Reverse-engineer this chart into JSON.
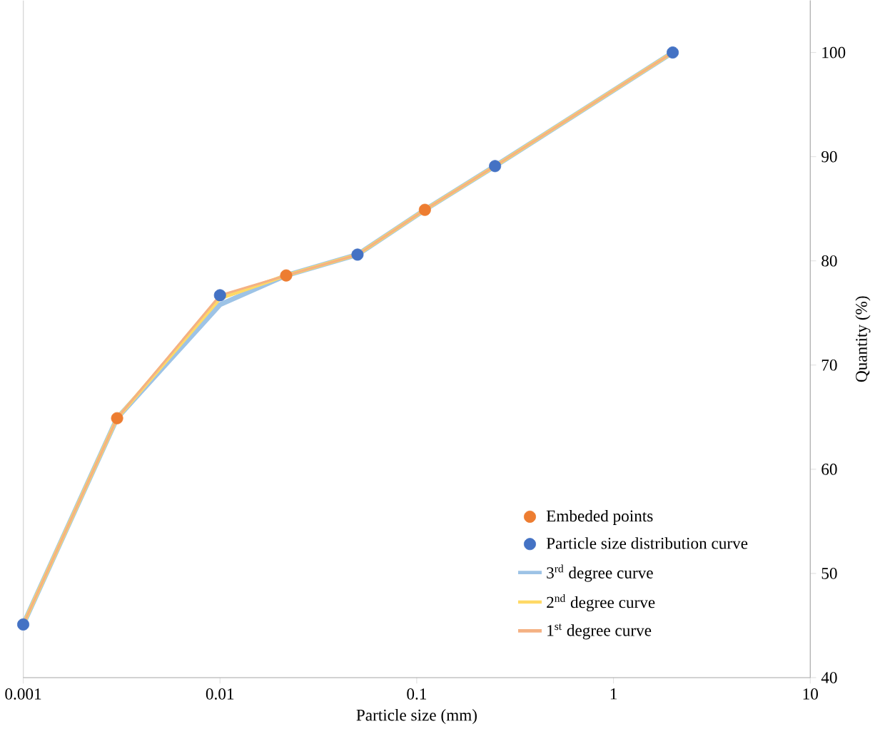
{
  "chart_data": {
    "type": "line",
    "xlabel": "Particle size (mm)",
    "ylabel": "Quantity (%)",
    "log": "x",
    "xlim": [
      0.001,
      10
    ],
    "xticks": [
      0.001,
      0.01,
      0.1,
      1,
      10
    ],
    "ylim": [
      40,
      105
    ],
    "yticks": [
      40,
      50,
      60,
      70,
      80,
      90,
      100
    ],
    "grid": false,
    "legend": "bottom right",
    "line_style": "solid",
    "series": [
      {
        "name": "Embeded points",
        "type": "scatter",
        "marker": "circle",
        "color": "#ed7d31",
        "x": [
          0.003,
          0.0217,
          0.11
        ],
        "values": [
          64.9,
          78.6,
          84.9
        ]
      },
      {
        "name": "Particle size distribution curve",
        "type": "scatter",
        "marker": "circle",
        "color": "#4472c4",
        "x": [
          0.001,
          0.01,
          0.05,
          0.25,
          2
        ],
        "values": [
          45.1,
          76.7,
          80.6,
          89.1,
          100
        ]
      },
      {
        "name": "3$^{rd}$ degree curve",
        "marker": "none",
        "color": "#9dc3e6",
        "x": [
          0.001,
          0.003,
          0.01,
          0.0217,
          0.05,
          0.11,
          0.25,
          2
        ],
        "values": [
          45.1,
          64.9,
          75.8,
          78.6,
          80.6,
          84.9,
          89.1,
          100
        ]
      },
      {
        "name": "2$^{nd}$ degree curve",
        "marker": "none",
        "color": "#ffd966",
        "x": [
          0.001,
          0.003,
          0.01,
          0.0217,
          0.05,
          0.11,
          0.25,
          2
        ],
        "values": [
          45.1,
          64.9,
          76.4,
          78.6,
          80.6,
          84.9,
          89.1,
          100
        ]
      },
      {
        "name": "1$^{st}$ degree curve",
        "marker": "none",
        "color": "#f4b183",
        "x": [
          0.001,
          0.003,
          0.01,
          0.0217,
          0.05,
          0.11,
          0.25,
          2
        ],
        "values": [
          45.1,
          64.9,
          76.7,
          78.6,
          80.6,
          84.9,
          89.1,
          100
        ]
      }
    ]
  }
}
